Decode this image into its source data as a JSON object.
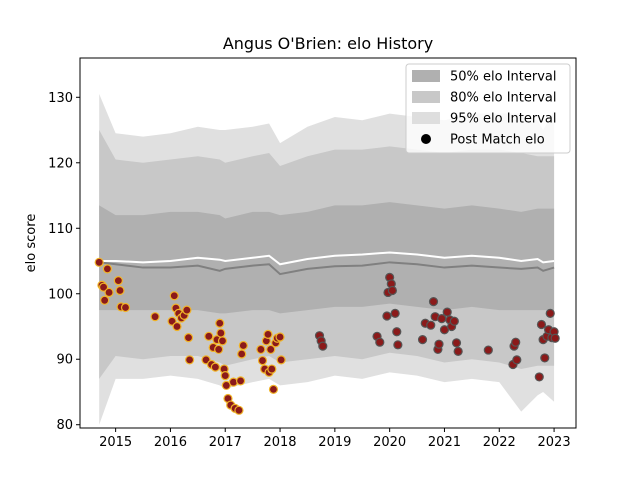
{
  "chart_data": {
    "type": "scatter",
    "title": "Angus O'Brien: elo History",
    "xlabel": "",
    "ylabel": "elo score",
    "xlim": [
      2014.35,
      2023.4
    ],
    "ylim": [
      79.5,
      136
    ],
    "x_ticks": [
      2015,
      2016,
      2017,
      2018,
      2019,
      2020,
      2021,
      2022,
      2023
    ],
    "x_tick_labels": [
      "2015",
      "2016",
      "2017",
      "2018",
      "2019",
      "2020",
      "2021",
      "2022",
      "2023"
    ],
    "y_ticks": [
      80,
      90,
      100,
      110,
      120,
      130
    ],
    "y_tick_labels": [
      "80",
      "90",
      "100",
      "110",
      "120",
      "130"
    ],
    "grid": false,
    "legend_position": "top-right",
    "legend": [
      {
        "label": "50% elo Interval",
        "kind": "band",
        "color": "#b0b0b0"
      },
      {
        "label": "80% elo Interval",
        "kind": "band",
        "color": "#c8c8c8"
      },
      {
        "label": "95% elo Interval",
        "kind": "band",
        "color": "#dedede"
      },
      {
        "label": "Post Match elo",
        "kind": "point",
        "color": "#000000"
      }
    ],
    "colors": {
      "band50": "#b0b0b0",
      "band80": "#c8c8c8",
      "band95": "#e0e0e0",
      "median_line": "#808080",
      "mean_line": "#ffffff",
      "point_fill": "#8b1a1a",
      "point_edge_early": "#f0b429",
      "point_edge_late": "#555555"
    },
    "band_x": [
      2014.7,
      2015.0,
      2015.5,
      2016.0,
      2016.5,
      2016.9,
      2017.0,
      2017.5,
      2017.8,
      2018.0,
      2018.5,
      2019.0,
      2019.5,
      2020.0,
      2020.5,
      2021.0,
      2021.5,
      2022.0,
      2022.4,
      2022.7,
      2022.8,
      2023.0
    ],
    "band95_upper": [
      130.5,
      124.5,
      124.0,
      124.5,
      125.5,
      125.0,
      125.0,
      125.5,
      126.0,
      123.0,
      125.5,
      127.0,
      126.5,
      127.5,
      127.0,
      126.5,
      127.5,
      127.5,
      127.5,
      126.5,
      125.0,
      128.0
    ],
    "band95_lower": [
      80.0,
      87.0,
      87.0,
      87.5,
      87.0,
      86.0,
      85.5,
      86.5,
      87.0,
      86.0,
      86.5,
      87.5,
      87.0,
      88.0,
      87.5,
      86.5,
      87.0,
      86.5,
      82.0,
      84.5,
      85.0,
      83.5
    ],
    "band80_upper": [
      125.0,
      120.5,
      120.0,
      120.5,
      121.0,
      120.5,
      120.0,
      121.0,
      121.5,
      119.5,
      121.0,
      122.0,
      122.0,
      122.5,
      122.0,
      121.5,
      122.0,
      122.0,
      121.5,
      121.0,
      121.0,
      121.0
    ],
    "band80_lower": [
      87.0,
      90.5,
      90.0,
      90.5,
      90.5,
      89.5,
      89.0,
      90.0,
      90.5,
      89.5,
      90.0,
      90.5,
      90.0,
      91.0,
      90.5,
      89.5,
      90.0,
      89.5,
      88.5,
      89.0,
      89.0,
      89.0
    ],
    "band50_upper": [
      113.5,
      112.0,
      112.0,
      112.5,
      112.5,
      112.0,
      111.5,
      112.5,
      112.5,
      112.0,
      112.5,
      113.5,
      113.5,
      114.0,
      113.5,
      113.0,
      113.5,
      113.0,
      112.5,
      113.0,
      113.0,
      113.0
    ],
    "band50_lower": [
      97.5,
      97.5,
      97.5,
      97.5,
      97.5,
      97.0,
      97.0,
      97.5,
      97.5,
      97.0,
      97.5,
      98.0,
      98.0,
      98.5,
      98.0,
      97.5,
      98.0,
      97.5,
      97.5,
      97.5,
      97.5,
      97.5
    ],
    "median_line": [
      104.8,
      104.5,
      104.0,
      104.0,
      104.3,
      103.5,
      103.8,
      104.3,
      104.5,
      103.0,
      103.8,
      104.2,
      104.3,
      104.8,
      104.5,
      104.0,
      104.3,
      104.0,
      103.8,
      104.0,
      103.5,
      104.0
    ],
    "mean_line": [
      105.0,
      105.0,
      104.8,
      105.0,
      105.5,
      105.2,
      105.0,
      105.5,
      105.8,
      104.5,
      105.3,
      105.8,
      106.0,
      106.3,
      106.0,
      105.5,
      105.8,
      105.5,
      105.0,
      105.3,
      104.8,
      105.0
    ],
    "points": [
      {
        "x": 2014.7,
        "y": 104.8
      },
      {
        "x": 2014.75,
        "y": 101.3
      },
      {
        "x": 2014.78,
        "y": 101.0
      },
      {
        "x": 2014.8,
        "y": 99.0
      },
      {
        "x": 2014.85,
        "y": 103.8
      },
      {
        "x": 2014.88,
        "y": 100.2
      },
      {
        "x": 2015.05,
        "y": 102.0
      },
      {
        "x": 2015.08,
        "y": 100.5
      },
      {
        "x": 2015.1,
        "y": 98.0
      },
      {
        "x": 2015.18,
        "y": 97.9
      },
      {
        "x": 2015.72,
        "y": 96.5
      },
      {
        "x": 2016.03,
        "y": 95.8
      },
      {
        "x": 2016.07,
        "y": 99.7
      },
      {
        "x": 2016.1,
        "y": 97.8
      },
      {
        "x": 2016.12,
        "y": 95.0
      },
      {
        "x": 2016.15,
        "y": 97.0
      },
      {
        "x": 2016.2,
        "y": 96.3
      },
      {
        "x": 2016.25,
        "y": 96.7
      },
      {
        "x": 2016.3,
        "y": 97.5
      },
      {
        "x": 2016.33,
        "y": 93.3
      },
      {
        "x": 2016.35,
        "y": 89.9
      },
      {
        "x": 2016.65,
        "y": 89.9
      },
      {
        "x": 2016.7,
        "y": 93.5
      },
      {
        "x": 2016.75,
        "y": 89.2
      },
      {
        "x": 2016.78,
        "y": 91.8
      },
      {
        "x": 2016.82,
        "y": 88.8
      },
      {
        "x": 2016.85,
        "y": 93.0
      },
      {
        "x": 2016.88,
        "y": 91.5
      },
      {
        "x": 2016.9,
        "y": 95.5
      },
      {
        "x": 2016.92,
        "y": 94.0
      },
      {
        "x": 2016.95,
        "y": 92.8
      },
      {
        "x": 2016.98,
        "y": 88.5
      },
      {
        "x": 2017.0,
        "y": 87.5
      },
      {
        "x": 2017.02,
        "y": 86.0
      },
      {
        "x": 2017.05,
        "y": 84.0
      },
      {
        "x": 2017.1,
        "y": 83.0
      },
      {
        "x": 2017.15,
        "y": 86.5
      },
      {
        "x": 2017.18,
        "y": 82.5
      },
      {
        "x": 2017.25,
        "y": 82.2
      },
      {
        "x": 2017.28,
        "y": 86.7
      },
      {
        "x": 2017.3,
        "y": 90.8
      },
      {
        "x": 2017.33,
        "y": 92.1
      },
      {
        "x": 2017.65,
        "y": 91.5
      },
      {
        "x": 2017.68,
        "y": 89.8
      },
      {
        "x": 2017.72,
        "y": 88.5
      },
      {
        "x": 2017.75,
        "y": 92.8
      },
      {
        "x": 2017.78,
        "y": 93.8
      },
      {
        "x": 2017.8,
        "y": 88.0
      },
      {
        "x": 2017.83,
        "y": 91.5
      },
      {
        "x": 2017.85,
        "y": 88.5
      },
      {
        "x": 2017.88,
        "y": 85.4
      },
      {
        "x": 2017.92,
        "y": 92.5
      },
      {
        "x": 2017.95,
        "y": 93.2
      },
      {
        "x": 2018.0,
        "y": 93.4
      },
      {
        "x": 2018.02,
        "y": 89.9
      },
      {
        "x": 2018.72,
        "y": 93.6
      },
      {
        "x": 2018.75,
        "y": 92.8
      },
      {
        "x": 2018.78,
        "y": 92.0
      },
      {
        "x": 2019.77,
        "y": 93.5
      },
      {
        "x": 2019.82,
        "y": 92.6
      },
      {
        "x": 2019.95,
        "y": 96.6
      },
      {
        "x": 2019.97,
        "y": 100.2
      },
      {
        "x": 2020.0,
        "y": 102.5
      },
      {
        "x": 2020.03,
        "y": 101.5
      },
      {
        "x": 2020.05,
        "y": 100.5
      },
      {
        "x": 2020.1,
        "y": 97.0
      },
      {
        "x": 2020.13,
        "y": 94.2
      },
      {
        "x": 2020.15,
        "y": 92.2
      },
      {
        "x": 2020.6,
        "y": 93.0
      },
      {
        "x": 2020.65,
        "y": 95.5
      },
      {
        "x": 2020.75,
        "y": 95.2
      },
      {
        "x": 2020.8,
        "y": 98.8
      },
      {
        "x": 2020.83,
        "y": 96.5
      },
      {
        "x": 2020.88,
        "y": 91.5
      },
      {
        "x": 2020.9,
        "y": 92.3
      },
      {
        "x": 2020.95,
        "y": 96.2
      },
      {
        "x": 2021.0,
        "y": 94.5
      },
      {
        "x": 2021.05,
        "y": 97.2
      },
      {
        "x": 2021.1,
        "y": 96.0
      },
      {
        "x": 2021.13,
        "y": 95.0
      },
      {
        "x": 2021.18,
        "y": 95.8
      },
      {
        "x": 2021.22,
        "y": 92.5
      },
      {
        "x": 2021.25,
        "y": 91.2
      },
      {
        "x": 2021.8,
        "y": 91.4
      },
      {
        "x": 2022.25,
        "y": 89.2
      },
      {
        "x": 2022.27,
        "y": 92.0
      },
      {
        "x": 2022.3,
        "y": 92.6
      },
      {
        "x": 2022.32,
        "y": 89.9
      },
      {
        "x": 2022.73,
        "y": 87.3
      },
      {
        "x": 2022.77,
        "y": 95.3
      },
      {
        "x": 2022.8,
        "y": 93.0
      },
      {
        "x": 2022.83,
        "y": 90.2
      },
      {
        "x": 2022.87,
        "y": 93.5
      },
      {
        "x": 2022.9,
        "y": 94.5
      },
      {
        "x": 2022.93,
        "y": 97.0
      },
      {
        "x": 2022.96,
        "y": 93.3
      },
      {
        "x": 2023.0,
        "y": 94.2
      },
      {
        "x": 2023.02,
        "y": 93.2
      }
    ]
  }
}
